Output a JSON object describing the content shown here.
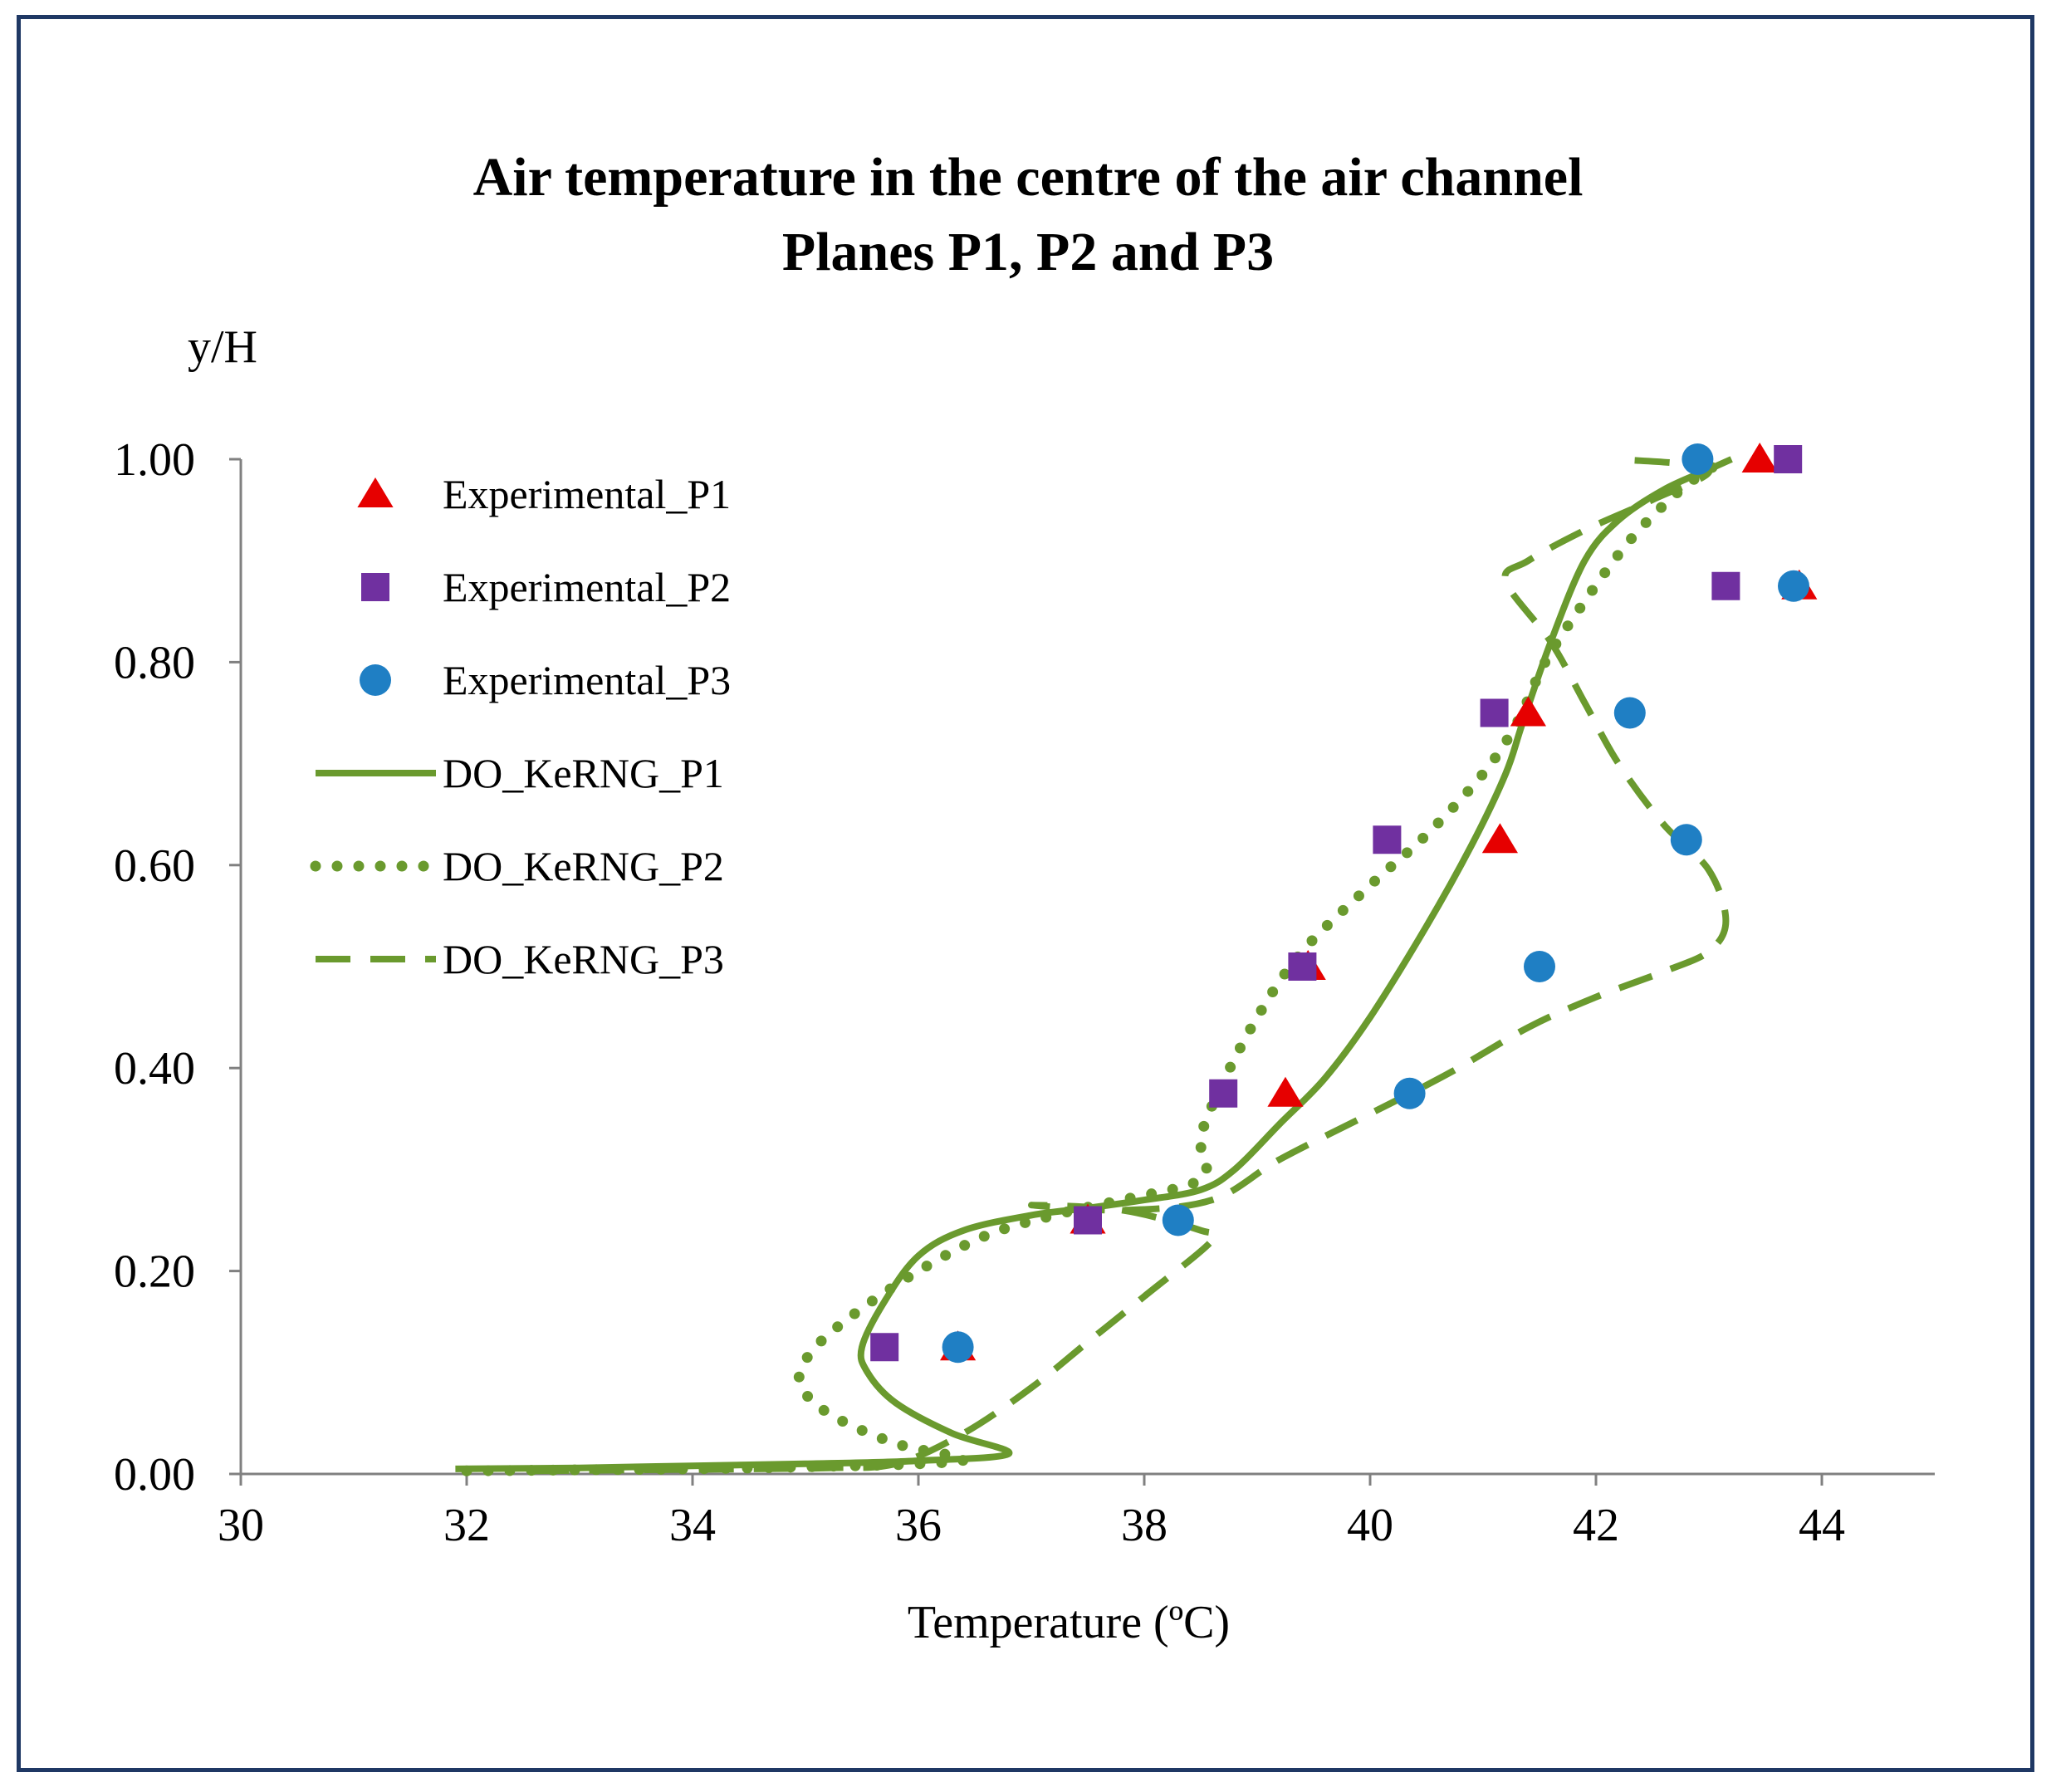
{
  "chart_data": {
    "type": "scatter",
    "title": [
      "Air temperature in the centre of the air channel",
      "Planes P1, P2 and P3"
    ],
    "xlabel": "Temperature (ºC)",
    "ylabel": "y/H",
    "xlim": [
      30,
      45
    ],
    "ylim": [
      0,
      1.0
    ],
    "x_ticks": [
      30,
      32,
      34,
      36,
      38,
      40,
      42,
      44
    ],
    "x_tick_labels": [
      "30",
      "32",
      "34",
      "36",
      "38",
      "40",
      "42",
      "44"
    ],
    "y_ticks": [
      0,
      0.2,
      0.4,
      0.6,
      0.8,
      1.0
    ],
    "y_tick_labels": [
      "0.00",
      "0.20",
      "0.40",
      "0.60",
      "0.80",
      "1.00"
    ],
    "grid": false,
    "legend_position": "top-left",
    "series": [
      {
        "name": "Experimental_P1",
        "kind": "marker",
        "marker": "triangle",
        "color": "#e60000",
        "points": [
          [
            36.35,
            0.125
          ],
          [
            37.5,
            0.25
          ],
          [
            39.25,
            0.375
          ],
          [
            39.45,
            0.5
          ],
          [
            41.15,
            0.625
          ],
          [
            41.4,
            0.75
          ],
          [
            43.8,
            0.875
          ],
          [
            43.45,
            1.0
          ]
        ]
      },
      {
        "name": "Experimental_P2",
        "kind": "marker",
        "marker": "square",
        "color": "#7030a0",
        "points": [
          [
            35.7,
            0.125
          ],
          [
            37.5,
            0.25
          ],
          [
            38.7,
            0.375
          ],
          [
            39.4,
            0.5
          ],
          [
            40.15,
            0.625
          ],
          [
            41.1,
            0.75
          ],
          [
            43.15,
            0.875
          ],
          [
            43.7,
            1.0
          ]
        ]
      },
      {
        "name": "Experimental_P3",
        "kind": "marker",
        "marker": "circle",
        "color": "#1f7fc4",
        "points": [
          [
            36.35,
            0.125
          ],
          [
            38.3,
            0.25
          ],
          [
            40.35,
            0.375
          ],
          [
            41.5,
            0.5
          ],
          [
            42.8,
            0.625
          ],
          [
            42.3,
            0.75
          ],
          [
            43.75,
            0.875
          ],
          [
            42.9,
            1.0
          ]
        ]
      },
      {
        "name": "DO_KeRNG_P1",
        "kind": "line",
        "dash": "solid",
        "color": "#6a9a2e",
        "points": [
          [
            31.9,
            0.005
          ],
          [
            33.0,
            0.006
          ],
          [
            34.0,
            0.008
          ],
          [
            35.0,
            0.01
          ],
          [
            36.0,
            0.013
          ],
          [
            36.8,
            0.02
          ],
          [
            36.3,
            0.04
          ],
          [
            35.8,
            0.07
          ],
          [
            35.55,
            0.1
          ],
          [
            35.5,
            0.125
          ],
          [
            35.7,
            0.17
          ],
          [
            36.0,
            0.215
          ],
          [
            36.4,
            0.24
          ],
          [
            37.0,
            0.255
          ],
          [
            37.5,
            0.262
          ],
          [
            38.0,
            0.27
          ],
          [
            38.5,
            0.28
          ],
          [
            38.8,
            0.3
          ],
          [
            39.2,
            0.345
          ],
          [
            39.6,
            0.39
          ],
          [
            40.0,
            0.45
          ],
          [
            40.5,
            0.54
          ],
          [
            40.9,
            0.62
          ],
          [
            41.2,
            0.69
          ],
          [
            41.35,
            0.74
          ],
          [
            41.6,
            0.82
          ],
          [
            41.9,
            0.9
          ],
          [
            42.2,
            0.94
          ],
          [
            42.6,
            0.97
          ],
          [
            43.0,
            0.99
          ],
          [
            43.2,
            1.0
          ]
        ]
      },
      {
        "name": "DO_KeRNG_P2",
        "kind": "line",
        "dash": "dotted",
        "color": "#6a9a2e",
        "points": [
          [
            32.0,
            0.003
          ],
          [
            33.0,
            0.004
          ],
          [
            34.0,
            0.005
          ],
          [
            35.0,
            0.007
          ],
          [
            36.0,
            0.01
          ],
          [
            36.4,
            0.015
          ],
          [
            35.8,
            0.03
          ],
          [
            35.2,
            0.06
          ],
          [
            34.95,
            0.09
          ],
          [
            35.05,
            0.12
          ],
          [
            35.4,
            0.155
          ],
          [
            36.0,
            0.2
          ],
          [
            36.6,
            0.235
          ],
          [
            37.2,
            0.255
          ],
          [
            37.8,
            0.27
          ],
          [
            38.4,
            0.285
          ],
          [
            38.55,
            0.3
          ],
          [
            38.5,
            0.33
          ],
          [
            38.65,
            0.375
          ],
          [
            39.0,
            0.45
          ],
          [
            39.4,
            0.515
          ],
          [
            40.0,
            0.58
          ],
          [
            40.5,
            0.63
          ],
          [
            41.0,
            0.69
          ],
          [
            41.3,
            0.74
          ],
          [
            41.55,
            0.8
          ],
          [
            41.9,
            0.86
          ],
          [
            42.3,
            0.92
          ],
          [
            42.7,
            0.965
          ],
          [
            43.0,
            0.99
          ],
          [
            43.2,
            1.0
          ]
        ]
      },
      {
        "name": "DO_KeRNG_P3",
        "kind": "line",
        "dash": "dashed",
        "color": "#6a9a2e",
        "points": [
          [
            32.6,
            0.003
          ],
          [
            33.5,
            0.004
          ],
          [
            34.5,
            0.005
          ],
          [
            35.2,
            0.006
          ],
          [
            35.8,
            0.01
          ],
          [
            36.4,
            0.04
          ],
          [
            37.0,
            0.085
          ],
          [
            37.5,
            0.13
          ],
          [
            38.0,
            0.175
          ],
          [
            38.6,
            0.23
          ],
          [
            38.5,
            0.24
          ],
          [
            37.8,
            0.26
          ],
          [
            37.0,
            0.265
          ],
          [
            37.8,
            0.26
          ],
          [
            38.6,
            0.27
          ],
          [
            39.2,
            0.31
          ],
          [
            40.0,
            0.355
          ],
          [
            40.7,
            0.395
          ],
          [
            41.4,
            0.44
          ],
          [
            42.0,
            0.47
          ],
          [
            42.6,
            0.495
          ],
          [
            43.0,
            0.515
          ],
          [
            43.15,
            0.545
          ],
          [
            43.0,
            0.595
          ],
          [
            42.6,
            0.64
          ],
          [
            42.2,
            0.7
          ],
          [
            41.9,
            0.76
          ],
          [
            41.6,
            0.82
          ],
          [
            41.2,
            0.88
          ],
          [
            41.4,
            0.9
          ],
          [
            41.9,
            0.93
          ],
          [
            42.5,
            0.96
          ],
          [
            43.0,
            0.99
          ],
          [
            42.2,
            1.0
          ]
        ]
      }
    ]
  }
}
